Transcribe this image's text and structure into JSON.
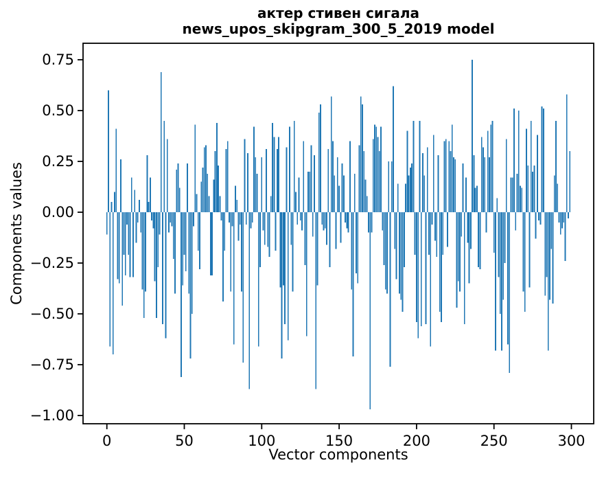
{
  "chart_data": {
    "type": "bar",
    "title": "актер стивен сигала",
    "subtitle": "news_upos_skipgram_300_5_2019 model",
    "xlabel": "Vector components",
    "ylabel": "Components values",
    "bar_color": "#1f77b4",
    "axis_color": "#000000",
    "background_color": "#ffffff",
    "grid": false,
    "legend": null,
    "n_points": 300,
    "x_description": "component index 0..299",
    "xlim": [
      -15.4,
      314.4
    ],
    "ylim": [
      -1.04,
      0.83
    ],
    "y_ticks": [
      {
        "value": 0.75,
        "label": "0.75"
      },
      {
        "value": 0.5,
        "label": "0.50"
      },
      {
        "value": 0.25,
        "label": "0.25"
      },
      {
        "value": 0.0,
        "label": "0.00"
      },
      {
        "value": -0.25,
        "label": "−0.25"
      },
      {
        "value": -0.5,
        "label": "−0.50"
      },
      {
        "value": -0.75,
        "label": "−0.75"
      },
      {
        "value": -1.0,
        "label": "−1.00"
      }
    ],
    "x_ticks": [
      {
        "value": 0,
        "label": "0"
      },
      {
        "value": 50,
        "label": "50"
      },
      {
        "value": 100,
        "label": "100"
      },
      {
        "value": 150,
        "label": "150"
      },
      {
        "value": 200,
        "label": "200"
      },
      {
        "value": 250,
        "label": "250"
      },
      {
        "value": 300,
        "label": "300"
      }
    ],
    "values": [
      -0.11,
      0.6,
      -0.66,
      0.05,
      -0.7,
      0.1,
      0.41,
      -0.33,
      -0.35,
      0.26,
      -0.46,
      -0.21,
      -0.31,
      -0.06,
      -0.21,
      -0.32,
      0.17,
      -0.32,
      0.11,
      -0.15,
      -0.05,
      0.06,
      -0.1,
      -0.38,
      -0.52,
      -0.39,
      0.28,
      0.05,
      0.17,
      -0.04,
      -0.08,
      -0.34,
      -0.52,
      -0.27,
      -0.11,
      0.69,
      -0.55,
      0.45,
      -0.62,
      0.36,
      -0.1,
      -0.05,
      -0.07,
      -0.23,
      -0.4,
      0.21,
      0.24,
      0.12,
      -0.81,
      -0.36,
      -0.21,
      -0.29,
      0.24,
      -0.4,
      -0.72,
      -0.5,
      -0.07,
      0.43,
      0.09,
      -0.19,
      -0.28,
      0.15,
      0.22,
      0.32,
      0.33,
      0.19,
      0.08,
      -0.31,
      -0.31,
      0.16,
      0.3,
      0.44,
      0.23,
      0.08,
      -0.04,
      -0.44,
      -0.19,
      0.31,
      0.35,
      -0.05,
      -0.39,
      -0.07,
      -0.65,
      0.13,
      0.06,
      -0.14,
      -0.06,
      -0.39,
      -0.74,
      0.36,
      -0.06,
      0.29,
      -0.87,
      -0.08,
      -0.05,
      0.42,
      0.27,
      0.19,
      -0.66,
      -0.27,
      0.27,
      -0.09,
      -0.16,
      0.31,
      -0.17,
      -0.22,
      0.08,
      0.44,
      0.37,
      -0.19,
      0.31,
      0.37,
      -0.37,
      -0.72,
      -0.36,
      -0.55,
      0.32,
      -0.63,
      0.42,
      -0.16,
      -0.39,
      0.45,
      0.1,
      -0.06,
      0.17,
      -0.04,
      -0.09,
      0.35,
      -0.26,
      -0.61,
      0.2,
      0.2,
      0.33,
      -0.12,
      0.28,
      -0.87,
      -0.36,
      0.49,
      0.53,
      -0.06,
      -0.09,
      -0.08,
      -0.16,
      0.31,
      -0.27,
      0.57,
      0.35,
      0.18,
      -0.18,
      0.27,
      0.13,
      -0.15,
      0.24,
      0.18,
      -0.05,
      -0.08,
      -0.1,
      0.35,
      -0.38,
      -0.71,
      0.19,
      -0.3,
      -0.35,
      0.33,
      0.57,
      0.53,
      0.3,
      0.16,
      0.08,
      -0.1,
      -0.97,
      -0.1,
      0.36,
      0.43,
      0.42,
      0.37,
      0.3,
      0.42,
      -0.09,
      -0.26,
      -0.38,
      -0.4,
      0.25,
      -0.76,
      0.25,
      0.62,
      -0.18,
      -0.33,
      0.14,
      -0.4,
      -0.43,
      -0.49,
      -0.27,
      0.14,
      0.4,
      0.18,
      0.22,
      0.24,
      0.45,
      -0.21,
      -0.54,
      -0.62,
      0.45,
      -0.56,
      0.29,
      0.18,
      -0.55,
      0.32,
      -0.21,
      -0.66,
      -0.06,
      0.38,
      -0.14,
      -0.22,
      0.28,
      -0.49,
      -0.54,
      -0.21,
      0.35,
      0.36,
      -0.17,
      0.35,
      0.3,
      0.43,
      0.27,
      0.26,
      -0.47,
      -0.34,
      -0.39,
      -0.12,
      0.24,
      -0.55,
      0.17,
      -0.15,
      -0.35,
      -0.18,
      0.75,
      0.28,
      0.12,
      0.13,
      -0.27,
      -0.28,
      0.37,
      0.32,
      0.27,
      -0.1,
      0.4,
      0.27,
      0.43,
      0.45,
      -0.2,
      -0.68,
      0.07,
      -0.32,
      -0.5,
      -0.68,
      -0.43,
      -0.25,
      0.36,
      -0.65,
      -0.79,
      0.17,
      0.17,
      0.51,
      -0.09,
      0.19,
      0.5,
      0.13,
      0.12,
      -0.39,
      -0.49,
      0.41,
      0.23,
      -0.37,
      0.45,
      0.2,
      0.23,
      -0.13,
      0.38,
      -0.04,
      -0.06,
      0.52,
      0.51,
      -0.41,
      -0.32,
      -0.68,
      -0.43,
      -0.18,
      -0.45,
      0.18,
      0.45,
      0.14,
      -0.05,
      -0.11,
      -0.08,
      -0.05,
      -0.24,
      0.58,
      -0.03,
      0.3
    ]
  }
}
